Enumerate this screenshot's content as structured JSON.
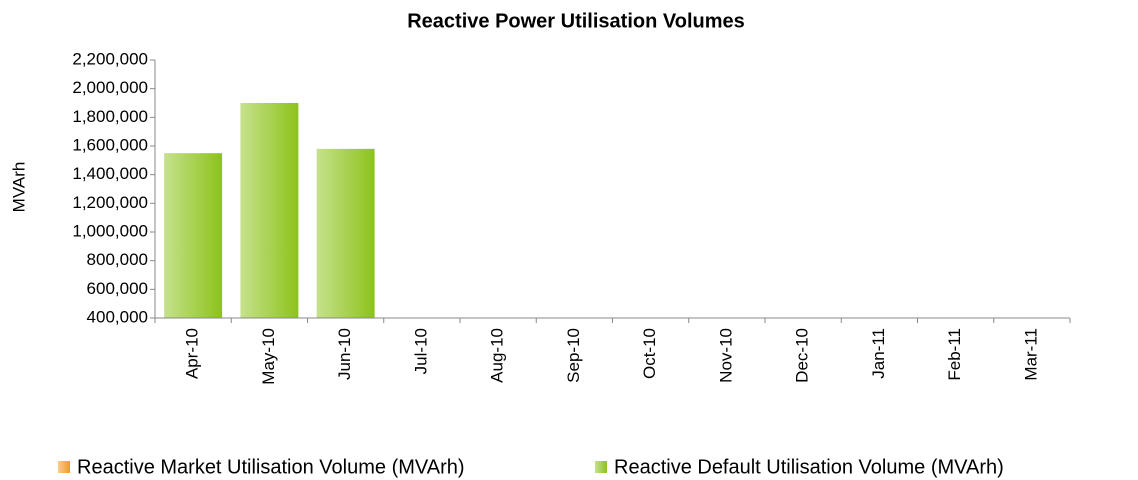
{
  "chart_data": {
    "type": "bar",
    "title": "Reactive Power Utilisation Volumes",
    "y_label": "MVArh",
    "categories": [
      "Apr-10",
      "May-10",
      "Jun-10",
      "Jul-10",
      "Aug-10",
      "Sep-10",
      "Oct-10",
      "Nov-10",
      "Dec-10",
      "Jan-11",
      "Feb-11",
      "Mar-11"
    ],
    "series": [
      {
        "name": "Reactive Market Utilisation Volume (MVArh)",
        "color": "#f39a1e",
        "values": [
          null,
          null,
          null,
          null,
          null,
          null,
          null,
          null,
          null,
          null,
          null,
          null
        ]
      },
      {
        "name": "Reactive Default Utilisation Volume (MVArh)",
        "color": "#8cc31a",
        "values": [
          1550000,
          1900000,
          1580000,
          null,
          null,
          null,
          null,
          null,
          null,
          null,
          null,
          null
        ]
      }
    ],
    "stacked": true,
    "ylim": [
      400000,
      2200000
    ],
    "yticks": [
      {
        "value": 400000,
        "label": "400,000"
      },
      {
        "value": 600000,
        "label": "600,000"
      },
      {
        "value": 800000,
        "label": "800,000"
      },
      {
        "value": 1000000,
        "label": "1,000,000"
      },
      {
        "value": 1200000,
        "label": "1,200,000"
      },
      {
        "value": 1400000,
        "label": "1,400,000"
      },
      {
        "value": 1600000,
        "label": "1,600,000"
      },
      {
        "value": 1800000,
        "label": "1,800,000"
      },
      {
        "value": 2000000,
        "label": "2,000,000"
      },
      {
        "value": 2200000,
        "label": "2,200,000"
      }
    ],
    "grid": false,
    "legend": "bottom"
  }
}
